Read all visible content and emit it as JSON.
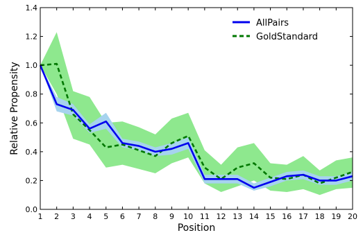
{
  "chart_data": {
    "type": "line",
    "xlabel": "Position",
    "ylabel": "Relative Propensity",
    "xlim": [
      1,
      20
    ],
    "ylim": [
      0.0,
      1.4
    ],
    "x_ticks": [
      "1",
      "2",
      "3",
      "4",
      "5",
      "6",
      "7",
      "8",
      "9",
      "10",
      "11",
      "12",
      "13",
      "14",
      "15",
      "16",
      "17",
      "18",
      "19",
      "20"
    ],
    "y_ticks": [
      "0.0",
      "0.2",
      "0.4",
      "0.6",
      "0.8",
      "1.0",
      "1.2",
      "1.4"
    ],
    "grid": false,
    "legend_position": "top-right",
    "x": [
      1,
      2,
      3,
      4,
      5,
      6,
      7,
      8,
      9,
      10,
      11,
      12,
      13,
      14,
      15,
      16,
      17,
      18,
      19,
      20
    ],
    "series": [
      {
        "name": "AllPairs",
        "style": "solid",
        "color": "#0000ee",
        "band_color": "#a6d3ee",
        "values": [
          1.0,
          0.73,
          0.69,
          0.56,
          0.61,
          0.46,
          0.44,
          0.4,
          0.42,
          0.46,
          0.21,
          0.21,
          0.21,
          0.15,
          0.19,
          0.23,
          0.24,
          0.2,
          0.2,
          0.23
        ],
        "lower": [
          1.0,
          0.68,
          0.65,
          0.53,
          0.56,
          0.43,
          0.41,
          0.37,
          0.38,
          0.42,
          0.18,
          0.18,
          0.18,
          0.13,
          0.16,
          0.2,
          0.21,
          0.17,
          0.17,
          0.2
        ],
        "upper": [
          1.0,
          0.78,
          0.73,
          0.59,
          0.67,
          0.49,
          0.47,
          0.43,
          0.46,
          0.5,
          0.24,
          0.24,
          0.24,
          0.18,
          0.22,
          0.26,
          0.27,
          0.23,
          0.23,
          0.26
        ]
      },
      {
        "name": "GoldStandard",
        "style": "dashed",
        "color": "#007700",
        "band_color": "#8ee88e",
        "values": [
          1.0,
          1.01,
          0.66,
          0.55,
          0.43,
          0.45,
          0.41,
          0.37,
          0.46,
          0.51,
          0.29,
          0.21,
          0.29,
          0.32,
          0.22,
          0.21,
          0.24,
          0.18,
          0.22,
          0.26
        ],
        "lower": [
          1.0,
          0.8,
          0.49,
          0.45,
          0.29,
          0.31,
          0.28,
          0.25,
          0.32,
          0.36,
          0.18,
          0.12,
          0.16,
          0.2,
          0.13,
          0.12,
          0.14,
          0.1,
          0.14,
          0.15
        ],
        "upper": [
          1.0,
          1.23,
          0.82,
          0.78,
          0.6,
          0.61,
          0.57,
          0.52,
          0.63,
          0.67,
          0.41,
          0.31,
          0.43,
          0.46,
          0.32,
          0.31,
          0.37,
          0.27,
          0.34,
          0.36
        ]
      }
    ]
  }
}
